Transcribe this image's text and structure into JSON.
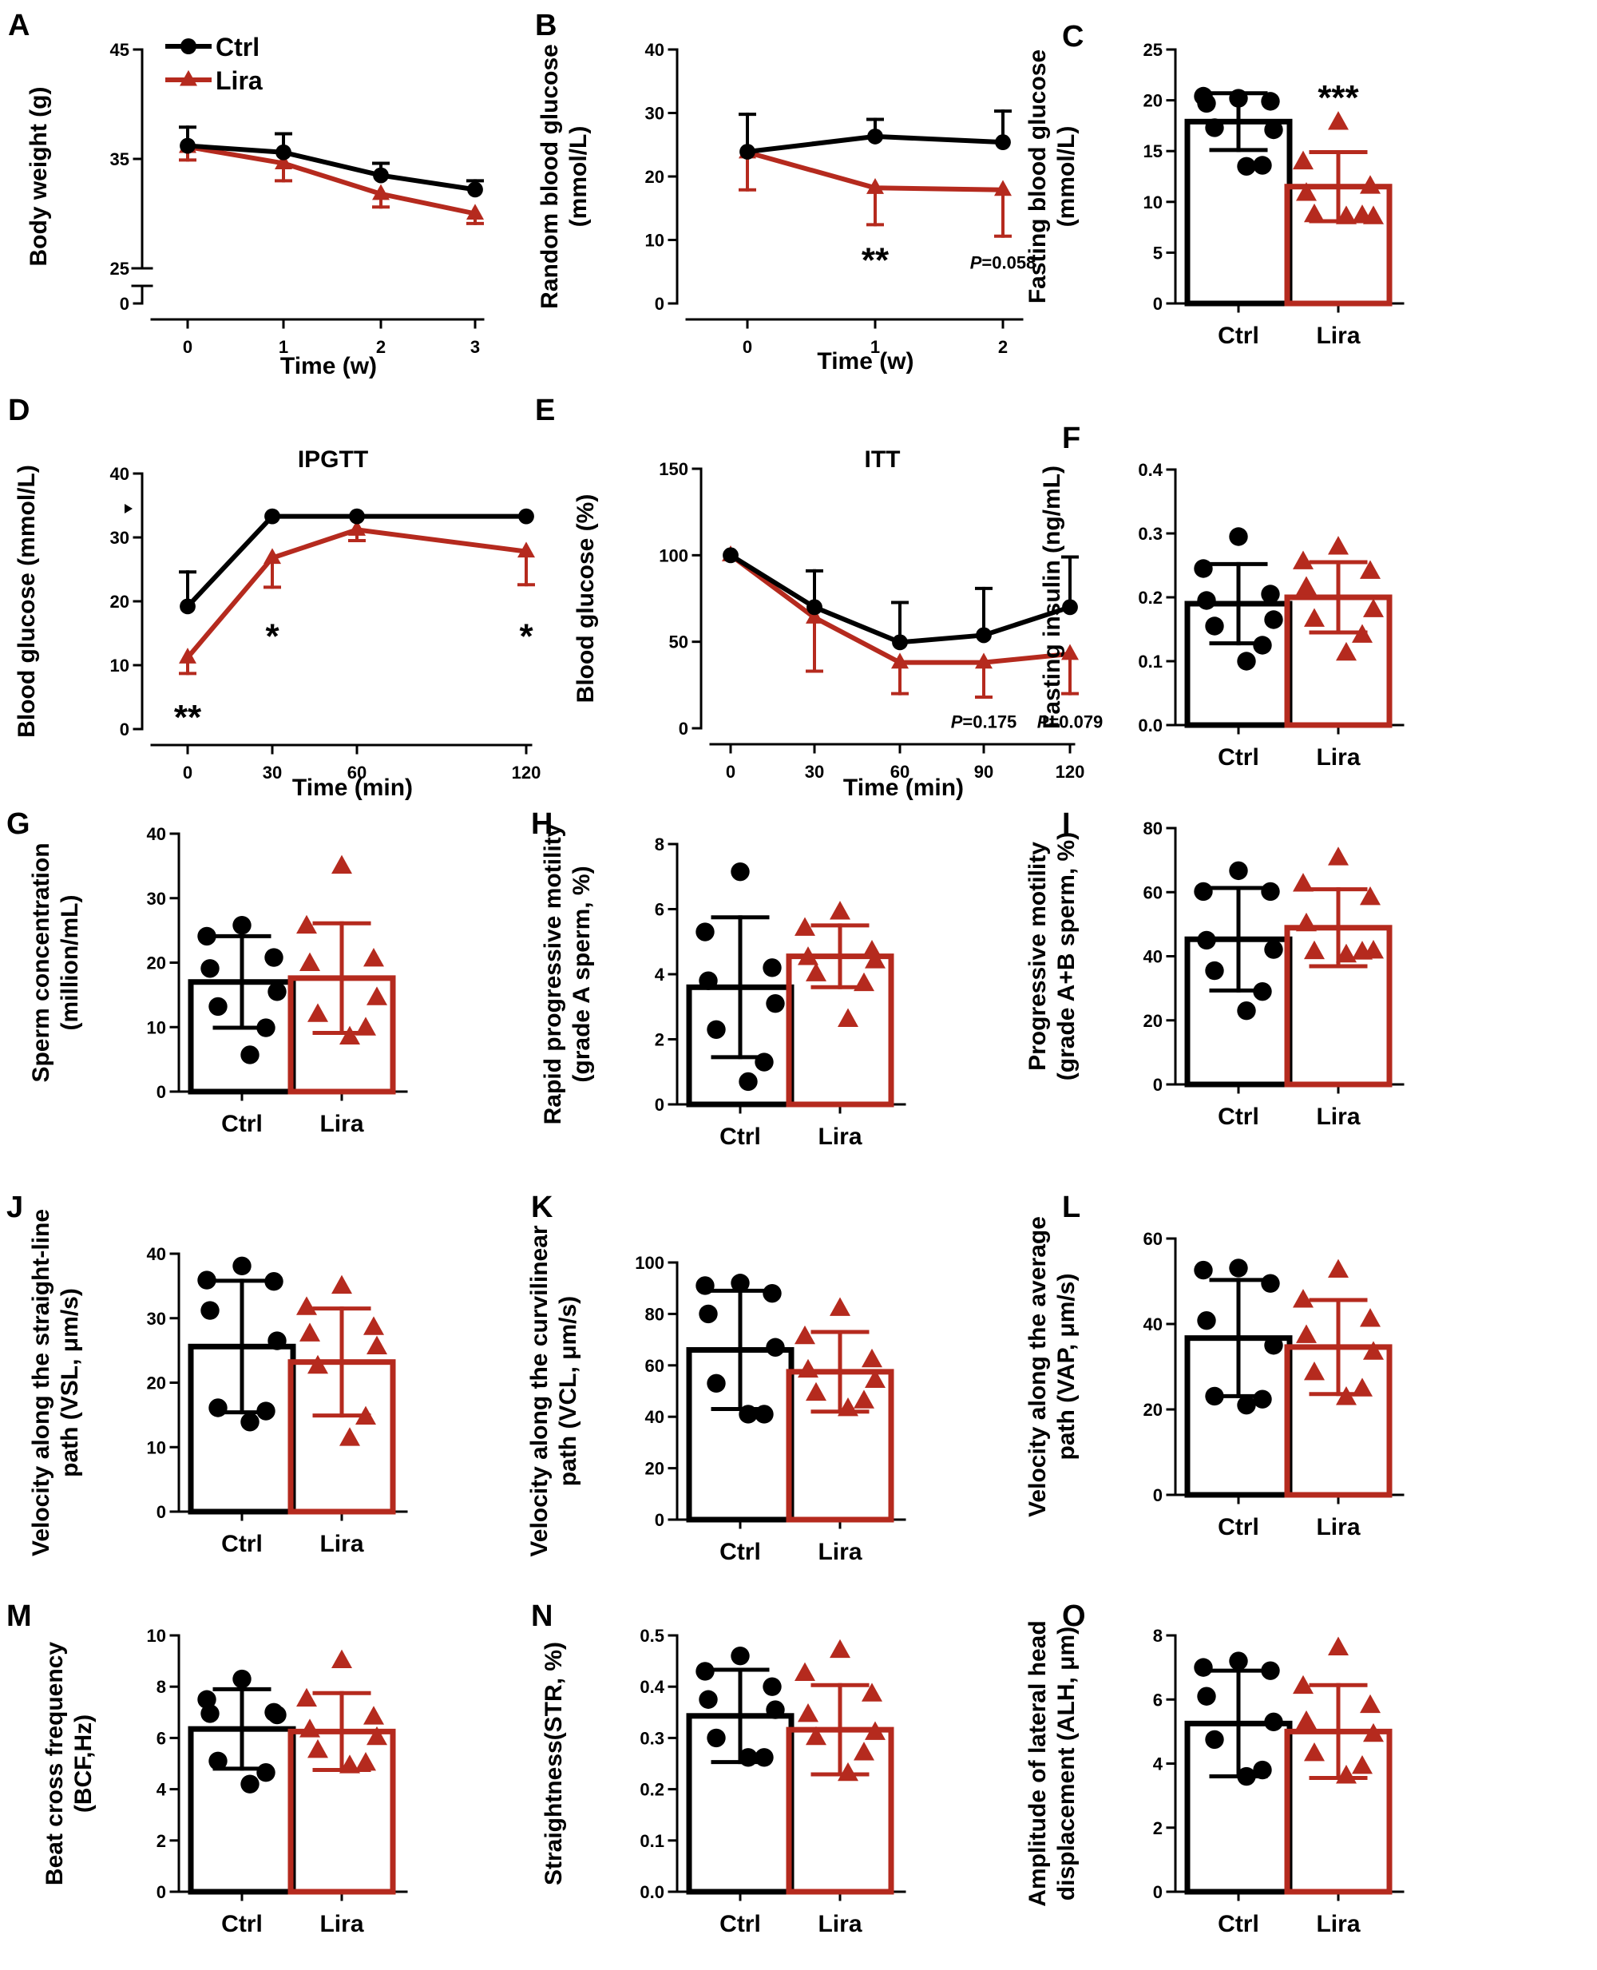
{
  "colors": {
    "ctrl": "#000000",
    "lira": "#b52a1e"
  },
  "legend": {
    "ctrl": "Ctrl",
    "lira": "Lira"
  },
  "chart_data": [
    {
      "panel": "A",
      "type": "line",
      "xlabel": "Time (w)",
      "ylabel": "Body weight (g)",
      "x": [
        0,
        1,
        2,
        3
      ],
      "xticks": [
        "0",
        "1",
        "2",
        "3"
      ],
      "yticks": [
        "0",
        "25",
        "35",
        "45"
      ],
      "ytick_values": [
        0,
        25,
        35,
        45
      ],
      "ylim": [
        0,
        45
      ],
      "broken_axis": true,
      "series": [
        {
          "name": "Ctrl",
          "values": [
            36.2,
            35.6,
            33.5,
            32.2
          ],
          "err": [
            1.7,
            1.7,
            1.1,
            0.8
          ]
        },
        {
          "name": "Lira",
          "values": [
            36.1,
            34.6,
            31.8,
            30.0
          ],
          "err": [
            1.2,
            1.6,
            1.2,
            0.9
          ]
        }
      ],
      "annotations": []
    },
    {
      "panel": "B",
      "type": "line",
      "xlabel": "Time (w)",
      "ylabel": "Random blood glucose (mmol/L)",
      "x": [
        0,
        1,
        2
      ],
      "xticks": [
        "0",
        "1",
        "2"
      ],
      "yticks": [
        "0",
        "10",
        "20",
        "30",
        "40"
      ],
      "ylim": [
        0,
        40
      ],
      "series": [
        {
          "name": "Ctrl",
          "values": [
            23.9,
            26.3,
            25.4
          ],
          "err": [
            5.9,
            2.7,
            4.9
          ]
        },
        {
          "name": "Lira",
          "values": [
            23.8,
            18.2,
            17.9
          ],
          "err": [
            5.9,
            5.8,
            7.3
          ]
        }
      ],
      "annotations": [
        {
          "text": "**",
          "x": 1,
          "y": 8.5
        },
        {
          "text": "P=0.058",
          "x": 2,
          "y": 6.5
        }
      ]
    },
    {
      "panel": "C",
      "type": "bar",
      "ylabel": "Fasting blood glucose (mmol/L)",
      "categories": [
        "Ctrl",
        "Lira"
      ],
      "yticks": [
        "0",
        "5",
        "10",
        "15",
        "20",
        "25"
      ],
      "ylim": [
        0,
        25
      ],
      "values": [
        17.9,
        11.5
      ],
      "err": [
        2.8,
        3.4
      ],
      "points": [
        [
          20.2,
          20.4,
          19.9,
          19.7,
          17.1,
          17.3,
          13.6,
          13.5
        ],
        [
          17.8,
          13.9,
          11.5,
          10.8,
          8.5,
          8.7,
          8.6,
          8.5
        ]
      ],
      "annotations": [
        {
          "text": "***",
          "group": 1,
          "y": 21.3
        }
      ]
    },
    {
      "panel": "D",
      "type": "line",
      "title": "IPGTT",
      "xlabel": "Time (min)",
      "ylabel": "Blood glucose (mmol/L)",
      "x": [
        0,
        30,
        60,
        120
      ],
      "xticks": [
        "0",
        "30",
        "60",
        "120"
      ],
      "yticks": [
        "0",
        "10",
        "20",
        "30",
        "40"
      ],
      "ylim": [
        0,
        40
      ],
      "series": [
        {
          "name": "Ctrl",
          "values": [
            19.2,
            33.3,
            33.3,
            33.3
          ],
          "err": [
            5.4,
            0,
            0,
            0
          ]
        },
        {
          "name": "Lira",
          "values": [
            11.2,
            26.8,
            31.2,
            27.8
          ],
          "err": [
            2.5,
            4.6,
            1.7,
            5.2
          ]
        }
      ],
      "annotations": [
        {
          "text": "**",
          "x": 0,
          "y": 3.5
        },
        {
          "text": "*",
          "x": 30,
          "y": 16.2
        },
        {
          "text": "*",
          "x": 120,
          "y": 16.2
        }
      ]
    },
    {
      "panel": "E",
      "type": "line",
      "title": "ITT",
      "xlabel": "Time (min)",
      "ylabel": "Blood glucose (%)",
      "x": [
        0,
        30,
        60,
        90,
        120
      ],
      "xticks": [
        "0",
        "30",
        "60",
        "90",
        "120"
      ],
      "yticks": [
        "0",
        "50",
        "100",
        "150"
      ],
      "ylim": [
        0,
        150
      ],
      "series": [
        {
          "name": "Ctrl",
          "values": [
            100,
            70,
            49.7,
            53.8,
            70
          ],
          "err": [
            0,
            21,
            23,
            27,
            29
          ]
        },
        {
          "name": "Lira",
          "values": [
            100,
            64,
            38,
            38,
            43
          ],
          "err": [
            0,
            31,
            18,
            20,
            23
          ]
        }
      ],
      "annotations": [
        {
          "text": "P=0.175",
          "x": 90,
          "y": 4
        },
        {
          "text": "P=0.079",
          "x": 120,
          "y": 4
        }
      ]
    },
    {
      "panel": "F",
      "type": "bar",
      "ylabel": "Fasting insulin (ng/mL)",
      "categories": [
        "Ctrl",
        "Lira"
      ],
      "yticks": [
        "0.0",
        "0.1",
        "0.2",
        "0.3",
        "0.4"
      ],
      "ylim": [
        0,
        0.4
      ],
      "values": [
        0.19,
        0.2
      ],
      "err": [
        0.062,
        0.055
      ],
      "points": [
        [
          0.295,
          0.245,
          0.205,
          0.195,
          0.165,
          0.155,
          0.125,
          0.1
        ],
        [
          0.278,
          0.255,
          0.24,
          0.215,
          0.18,
          0.165,
          0.14,
          0.112
        ]
      ]
    },
    {
      "panel": "G",
      "type": "bar",
      "ylabel": "Sperm concentration (million/mL)",
      "categories": [
        "Ctrl",
        "Lira"
      ],
      "yticks": [
        "0",
        "10",
        "20",
        "30",
        "40"
      ],
      "ylim": [
        0,
        40
      ],
      "values": [
        17.0,
        17.6
      ],
      "err": [
        7.1,
        8.5
      ],
      "points": [
        [
          25.8,
          24.1,
          20.8,
          19.1,
          15.5,
          13.2,
          9.9,
          5.7
        ],
        [
          34.9,
          25.6,
          20.5,
          19.8,
          14.5,
          11.9,
          9.8,
          8.4
        ]
      ]
    },
    {
      "panel": "H",
      "type": "bar",
      "ylabel": "Rapid progressive motility (grade A sperm, %)",
      "categories": [
        "Ctrl",
        "Lira"
      ],
      "yticks": [
        "0",
        "2",
        "4",
        "6",
        "8"
      ],
      "ylim": [
        0,
        8
      ],
      "values": [
        3.6,
        4.55
      ],
      "err": [
        2.15,
        0.95
      ],
      "points": [
        [
          7.15,
          5.3,
          4.2,
          3.8,
          3.1,
          2.3,
          1.3,
          0.7
        ],
        [
          5.9,
          5.4,
          4.7,
          4.5,
          4.4,
          4.0,
          3.7,
          2.6
        ]
      ]
    },
    {
      "panel": "I",
      "type": "bar",
      "ylabel": "Progressive motility (grade A+B sperm, %)",
      "categories": [
        "Ctrl",
        "Lira"
      ],
      "yticks": [
        "0",
        "20",
        "40",
        "60",
        "80"
      ],
      "ylim": [
        0,
        80
      ],
      "values": [
        45.3,
        48.9
      ],
      "err": [
        16,
        12
      ],
      "points": [
        [
          66.7,
          60.2,
          60.2,
          45.0,
          42.1,
          35.5,
          29.0,
          23.0
        ],
        [
          70.6,
          62.4,
          58.2,
          50.0,
          41.5,
          41.3,
          41.2,
          40.3
        ]
      ]
    },
    {
      "panel": "J",
      "type": "bar",
      "ylabel": "Velocity along the straight-line path (VSL, μm/s)",
      "categories": [
        "Ctrl",
        "Lira"
      ],
      "yticks": [
        "0",
        "10",
        "20",
        "30",
        "40"
      ],
      "ylim": [
        0,
        40
      ],
      "values": [
        25.6,
        23.2
      ],
      "err": [
        10.2,
        8.3
      ],
      "points": [
        [
          38.1,
          35.9,
          35.7,
          31.2,
          26.5,
          16.1,
          15.6,
          13.9
        ],
        [
          34.9,
          31.6,
          28.5,
          27.5,
          25.5,
          22.5,
          14.6,
          11.3
        ]
      ]
    },
    {
      "panel": "K",
      "type": "bar",
      "ylabel": "Velocity along the curvilinear path (VCL, μm/s)",
      "categories": [
        "Ctrl",
        "Lira"
      ],
      "yticks": [
        "0",
        "20",
        "40",
        "60",
        "80",
        "100"
      ],
      "ylim": [
        0,
        100
      ],
      "values": [
        66,
        57.5
      ],
      "err": [
        23,
        15.5
      ],
      "points": [
        [
          92,
          91,
          88,
          80,
          67,
          53,
          41,
          41
        ],
        [
          82,
          71,
          62,
          58,
          54,
          49,
          46,
          43
        ]
      ]
    },
    {
      "panel": "L",
      "type": "bar",
      "ylabel": "Velocity along the average path (VAP, μm/s)",
      "categories": [
        "Ctrl",
        "Lira"
      ],
      "yticks": [
        "0",
        "20",
        "40",
        "60"
      ],
      "ylim": [
        0,
        60
      ],
      "values": [
        36.7,
        34.6
      ],
      "err": [
        13.6,
        11
      ],
      "points": [
        [
          53.1,
          52.6,
          49.5,
          40.8,
          35.0,
          23.1,
          22.4,
          21.0
        ],
        [
          52.5,
          45.5,
          41.0,
          37.2,
          33.3,
          28.5,
          24.7,
          22.7
        ]
      ]
    },
    {
      "panel": "M",
      "type": "bar",
      "ylabel": "Beat cross frequency (BCF,Hz)",
      "categories": [
        "Ctrl",
        "Lira"
      ],
      "yticks": [
        "0",
        "2",
        "4",
        "6",
        "8",
        "10"
      ],
      "ylim": [
        0,
        10
      ],
      "values": [
        6.35,
        6.25
      ],
      "err": [
        1.55,
        1.5
      ],
      "points": [
        [
          8.3,
          7.5,
          7.0,
          6.95,
          6.9,
          5.1,
          4.65,
          4.2
        ],
        [
          9.0,
          7.5,
          6.8,
          6.3,
          6.0,
          5.5,
          5.0,
          4.9
        ]
      ]
    },
    {
      "panel": "N",
      "type": "bar",
      "ylabel": "Straightness(STR, %)",
      "categories": [
        "Ctrl",
        "Lira"
      ],
      "yticks": [
        "0.0",
        "0.1",
        "0.2",
        "0.3",
        "0.4",
        "0.5"
      ],
      "ylim": [
        0,
        0.5
      ],
      "values": [
        0.343,
        0.316
      ],
      "err": [
        0.09,
        0.087
      ],
      "points": [
        [
          0.46,
          0.43,
          0.4,
          0.375,
          0.355,
          0.3,
          0.262,
          0.262
        ],
        [
          0.47,
          0.425,
          0.385,
          0.345,
          0.31,
          0.3,
          0.27,
          0.23
        ]
      ]
    },
    {
      "panel": "O",
      "type": "bar",
      "ylabel": "Amplitude of lateral head displacement (ALH, μm)",
      "categories": [
        "Ctrl",
        "Lira"
      ],
      "yticks": [
        "0",
        "2",
        "4",
        "6",
        "8"
      ],
      "ylim": [
        0,
        8
      ],
      "values": [
        5.25,
        5.0
      ],
      "err": [
        1.65,
        1.45
      ],
      "points": [
        [
          7.2,
          7.0,
          6.9,
          6.1,
          5.3,
          4.75,
          3.8,
          3.6
        ],
        [
          7.6,
          6.4,
          5.8,
          5.3,
          4.9,
          4.3,
          3.9,
          3.6
        ]
      ]
    }
  ]
}
